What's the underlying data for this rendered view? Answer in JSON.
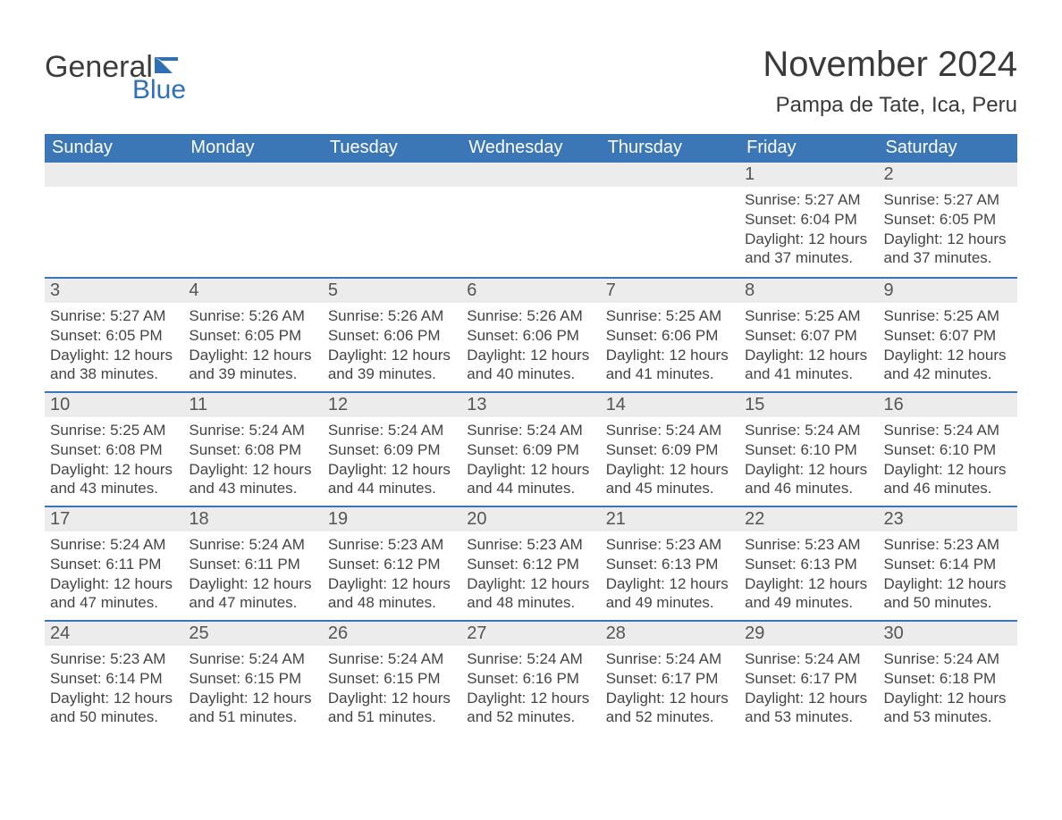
{
  "logo": {
    "word1": "General",
    "word2": "Blue",
    "flag_color": "#2f6fb3"
  },
  "title": "November 2024",
  "location": "Pampa de Tate, Ica, Peru",
  "header_bg": "#3b76b6",
  "header_fg": "#ffffff",
  "daynum_bg": "#ececec",
  "border_color": "#3b76b6",
  "weekdays": [
    "Sunday",
    "Monday",
    "Tuesday",
    "Wednesday",
    "Thursday",
    "Friday",
    "Saturday"
  ],
  "weeks": [
    [
      {
        "day": "",
        "sunrise": "",
        "sunset": "",
        "daylight": ""
      },
      {
        "day": "",
        "sunrise": "",
        "sunset": "",
        "daylight": ""
      },
      {
        "day": "",
        "sunrise": "",
        "sunset": "",
        "daylight": ""
      },
      {
        "day": "",
        "sunrise": "",
        "sunset": "",
        "daylight": ""
      },
      {
        "day": "",
        "sunrise": "",
        "sunset": "",
        "daylight": ""
      },
      {
        "day": "1",
        "sunrise": "Sunrise: 5:27 AM",
        "sunset": "Sunset: 6:04 PM",
        "daylight": "Daylight: 12 hours and 37 minutes."
      },
      {
        "day": "2",
        "sunrise": "Sunrise: 5:27 AM",
        "sunset": "Sunset: 6:05 PM",
        "daylight": "Daylight: 12 hours and 37 minutes."
      }
    ],
    [
      {
        "day": "3",
        "sunrise": "Sunrise: 5:27 AM",
        "sunset": "Sunset: 6:05 PM",
        "daylight": "Daylight: 12 hours and 38 minutes."
      },
      {
        "day": "4",
        "sunrise": "Sunrise: 5:26 AM",
        "sunset": "Sunset: 6:05 PM",
        "daylight": "Daylight: 12 hours and 39 minutes."
      },
      {
        "day": "5",
        "sunrise": "Sunrise: 5:26 AM",
        "sunset": "Sunset: 6:06 PM",
        "daylight": "Daylight: 12 hours and 39 minutes."
      },
      {
        "day": "6",
        "sunrise": "Sunrise: 5:26 AM",
        "sunset": "Sunset: 6:06 PM",
        "daylight": "Daylight: 12 hours and 40 minutes."
      },
      {
        "day": "7",
        "sunrise": "Sunrise: 5:25 AM",
        "sunset": "Sunset: 6:06 PM",
        "daylight": "Daylight: 12 hours and 41 minutes."
      },
      {
        "day": "8",
        "sunrise": "Sunrise: 5:25 AM",
        "sunset": "Sunset: 6:07 PM",
        "daylight": "Daylight: 12 hours and 41 minutes."
      },
      {
        "day": "9",
        "sunrise": "Sunrise: 5:25 AM",
        "sunset": "Sunset: 6:07 PM",
        "daylight": "Daylight: 12 hours and 42 minutes."
      }
    ],
    [
      {
        "day": "10",
        "sunrise": "Sunrise: 5:25 AM",
        "sunset": "Sunset: 6:08 PM",
        "daylight": "Daylight: 12 hours and 43 minutes."
      },
      {
        "day": "11",
        "sunrise": "Sunrise: 5:24 AM",
        "sunset": "Sunset: 6:08 PM",
        "daylight": "Daylight: 12 hours and 43 minutes."
      },
      {
        "day": "12",
        "sunrise": "Sunrise: 5:24 AM",
        "sunset": "Sunset: 6:09 PM",
        "daylight": "Daylight: 12 hours and 44 minutes."
      },
      {
        "day": "13",
        "sunrise": "Sunrise: 5:24 AM",
        "sunset": "Sunset: 6:09 PM",
        "daylight": "Daylight: 12 hours and 44 minutes."
      },
      {
        "day": "14",
        "sunrise": "Sunrise: 5:24 AM",
        "sunset": "Sunset: 6:09 PM",
        "daylight": "Daylight: 12 hours and 45 minutes."
      },
      {
        "day": "15",
        "sunrise": "Sunrise: 5:24 AM",
        "sunset": "Sunset: 6:10 PM",
        "daylight": "Daylight: 12 hours and 46 minutes."
      },
      {
        "day": "16",
        "sunrise": "Sunrise: 5:24 AM",
        "sunset": "Sunset: 6:10 PM",
        "daylight": "Daylight: 12 hours and 46 minutes."
      }
    ],
    [
      {
        "day": "17",
        "sunrise": "Sunrise: 5:24 AM",
        "sunset": "Sunset: 6:11 PM",
        "daylight": "Daylight: 12 hours and 47 minutes."
      },
      {
        "day": "18",
        "sunrise": "Sunrise: 5:24 AM",
        "sunset": "Sunset: 6:11 PM",
        "daylight": "Daylight: 12 hours and 47 minutes."
      },
      {
        "day": "19",
        "sunrise": "Sunrise: 5:23 AM",
        "sunset": "Sunset: 6:12 PM",
        "daylight": "Daylight: 12 hours and 48 minutes."
      },
      {
        "day": "20",
        "sunrise": "Sunrise: 5:23 AM",
        "sunset": "Sunset: 6:12 PM",
        "daylight": "Daylight: 12 hours and 48 minutes."
      },
      {
        "day": "21",
        "sunrise": "Sunrise: 5:23 AM",
        "sunset": "Sunset: 6:13 PM",
        "daylight": "Daylight: 12 hours and 49 minutes."
      },
      {
        "day": "22",
        "sunrise": "Sunrise: 5:23 AM",
        "sunset": "Sunset: 6:13 PM",
        "daylight": "Daylight: 12 hours and 49 minutes."
      },
      {
        "day": "23",
        "sunrise": "Sunrise: 5:23 AM",
        "sunset": "Sunset: 6:14 PM",
        "daylight": "Daylight: 12 hours and 50 minutes."
      }
    ],
    [
      {
        "day": "24",
        "sunrise": "Sunrise: 5:23 AM",
        "sunset": "Sunset: 6:14 PM",
        "daylight": "Daylight: 12 hours and 50 minutes."
      },
      {
        "day": "25",
        "sunrise": "Sunrise: 5:24 AM",
        "sunset": "Sunset: 6:15 PM",
        "daylight": "Daylight: 12 hours and 51 minutes."
      },
      {
        "day": "26",
        "sunrise": "Sunrise: 5:24 AM",
        "sunset": "Sunset: 6:15 PM",
        "daylight": "Daylight: 12 hours and 51 minutes."
      },
      {
        "day": "27",
        "sunrise": "Sunrise: 5:24 AM",
        "sunset": "Sunset: 6:16 PM",
        "daylight": "Daylight: 12 hours and 52 minutes."
      },
      {
        "day": "28",
        "sunrise": "Sunrise: 5:24 AM",
        "sunset": "Sunset: 6:17 PM",
        "daylight": "Daylight: 12 hours and 52 minutes."
      },
      {
        "day": "29",
        "sunrise": "Sunrise: 5:24 AM",
        "sunset": "Sunset: 6:17 PM",
        "daylight": "Daylight: 12 hours and 53 minutes."
      },
      {
        "day": "30",
        "sunrise": "Sunrise: 5:24 AM",
        "sunset": "Sunset: 6:18 PM",
        "daylight": "Daylight: 12 hours and 53 minutes."
      }
    ]
  ]
}
